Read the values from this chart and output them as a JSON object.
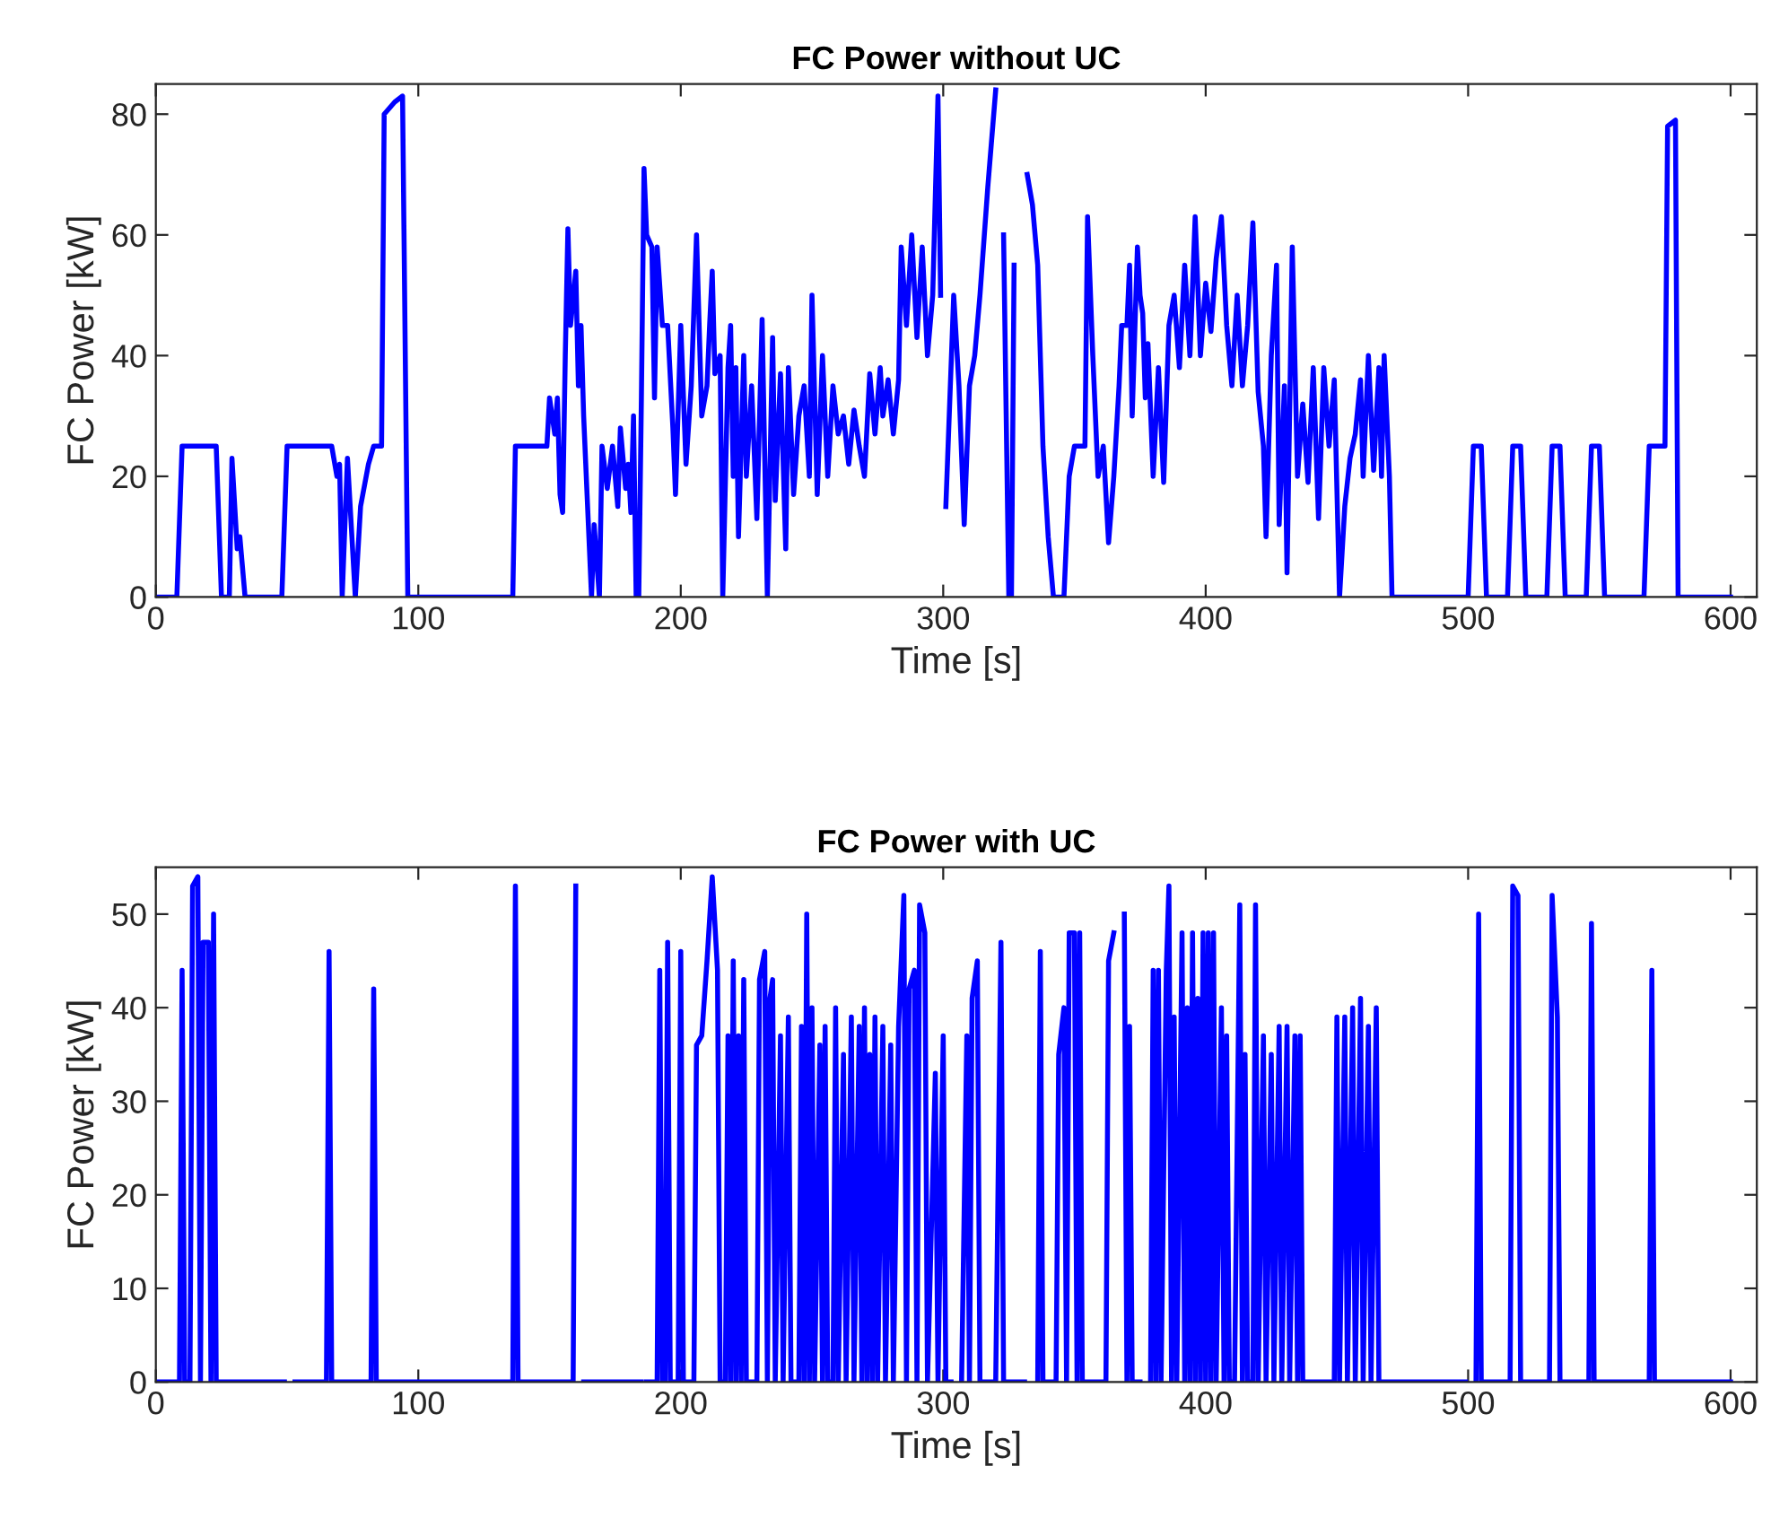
{
  "chart_data": [
    {
      "type": "line",
      "title": "FC Power without UC",
      "xlabel": "Time [s]",
      "ylabel": "FC Power [kW]",
      "xlim": [
        0,
        610
      ],
      "xticks": [
        0,
        100,
        200,
        300,
        400,
        500,
        600
      ],
      "ylim": [
        0,
        85
      ],
      "yticks": [
        0,
        20,
        40,
        60,
        80
      ],
      "grid": false,
      "legend": false,
      "marker": "none",
      "line_style": "solid",
      "series": [
        {
          "color": "#0000ff",
          "x": [
            0,
            8,
            10,
            23,
            25,
            28,
            29,
            31,
            32,
            34,
            48,
            50,
            67,
            69,
            70,
            71,
            73,
            76,
            78,
            81,
            83,
            86,
            87,
            91,
            94,
            96,
            98,
            136,
            137,
            149,
            150,
            152,
            153,
            154,
            155,
            156,
            157,
            158,
            160,
            161,
            162,
            163,
            164,
            165,
            166,
            167,
            169,
            170,
            172,
            174,
            176,
            177,
            179,
            180,
            181,
            182,
            183,
            184,
            185,
            186,
            187,
            189,
            190,
            191,
            193,
            195,
            197,
            198,
            200,
            202,
            204,
            206,
            208,
            210,
            211,
            212,
            213,
            215,
            216,
            218,
            219,
            220,
            221,
            222,
            224,
            225,
            227,
            229,
            231,
            233,
            235,
            236,
            238,
            240,
            241,
            243,
            245,
            247,
            249,
            250,
            252,
            254,
            256,
            258,
            260,
            262,
            264,
            266,
            268,
            270,
            272,
            274,
            276,
            277,
            279,
            281,
            283,
            284,
            286,
            288,
            290,
            292,
            294,
            296,
            298,
            299,
            300,
            301,
            304,
            306,
            308,
            310,
            312,
            314,
            317,
            320,
            322,
            323,
            325,
            326,
            327,
            328,
            331,
            332,
            334,
            336,
            338,
            340,
            342,
            346,
            348,
            350,
            354,
            355,
            357,
            359,
            361,
            363,
            365,
            367,
            368,
            370,
            371,
            372,
            374,
            375,
            376,
            377,
            378,
            380,
            382,
            384,
            386,
            388,
            390,
            392,
            394,
            396,
            398,
            400,
            402,
            404,
            406,
            408,
            410,
            412,
            414,
            416,
            418,
            420,
            422,
            423,
            425,
            427,
            428,
            430,
            431,
            433,
            435,
            437,
            439,
            441,
            443,
            445,
            447,
            449,
            451,
            453,
            455,
            457,
            459,
            460,
            462,
            464,
            466,
            467,
            468,
            470,
            471,
            500,
            502,
            505,
            507,
            515,
            517,
            520,
            522,
            530,
            532,
            535,
            537,
            545,
            547,
            550,
            552,
            567,
            569,
            575,
            576,
            579,
            580,
            600
          ],
          "values": [
            0,
            0,
            25,
            25,
            0,
            0,
            23,
            8,
            10,
            0,
            0,
            25,
            25,
            20,
            22,
            0,
            23,
            0,
            15,
            22,
            25,
            25,
            80,
            82,
            83,
            0,
            0,
            0,
            25,
            25,
            33,
            27,
            33,
            17,
            14,
            40,
            61,
            45,
            54,
            35,
            45,
            30,
            20,
            10,
            0,
            12,
            0,
            25,
            18,
            25,
            15,
            28,
            18,
            22,
            14,
            30,
            0,
            0,
            33,
            71,
            60,
            58,
            33,
            58,
            45,
            45,
            28,
            17,
            45,
            22,
            35,
            60,
            30,
            35,
            45,
            54,
            37,
            40,
            0,
            38,
            45,
            20,
            38,
            10,
            40,
            20,
            35,
            13,
            46,
            0,
            43,
            16,
            37,
            8,
            38,
            17,
            30,
            35,
            20,
            50,
            17,
            40,
            20,
            35,
            27,
            30,
            22,
            31,
            25,
            20,
            37,
            27,
            38,
            30,
            36,
            27,
            36,
            58,
            45,
            60,
            43,
            58,
            40,
            50,
            83,
            50,
            null,
            15,
            50,
            35,
            12,
            35,
            40,
            50,
            68,
            84,
            null,
            60,
            0,
            0,
            55,
            null,
            null,
            70,
            65,
            55,
            25,
            10,
            0,
            0,
            20,
            25,
            25,
            63,
            40,
            20,
            25,
            9,
            20,
            35,
            45,
            45,
            55,
            30,
            58,
            50,
            47,
            33,
            42,
            20,
            38,
            19,
            45,
            50,
            38,
            55,
            40,
            63,
            40,
            52,
            44,
            56,
            63,
            45,
            35,
            50,
            35,
            45,
            62,
            34,
            25,
            10,
            40,
            55,
            12,
            35,
            4,
            58,
            20,
            32,
            19,
            38,
            13,
            38,
            25,
            36,
            0,
            15,
            23,
            27,
            36,
            20,
            40,
            21,
            38,
            20,
            40,
            20,
            0,
            0,
            25,
            25,
            0,
            0,
            25,
            25,
            0,
            0,
            25,
            25,
            0,
            0,
            25,
            25,
            0,
            0,
            25,
            25,
            78,
            79,
            0,
            0
          ]
        }
      ]
    },
    {
      "type": "line",
      "title": "FC Power with UC",
      "xlabel": "Time [s]",
      "ylabel": "FC Power [kW]",
      "xlim": [
        0,
        610
      ],
      "xticks": [
        0,
        100,
        200,
        300,
        400,
        500,
        600
      ],
      "ylim": [
        0,
        55
      ],
      "yticks": [
        0,
        10,
        20,
        30,
        40,
        50
      ],
      "grid": false,
      "legend": false,
      "marker": "none",
      "line_style": "solid",
      "series": [
        {
          "color": "#0000ff",
          "x": [
            0,
            9,
            10,
            11,
            13,
            14,
            16,
            17,
            18,
            20,
            21,
            22,
            23,
            49,
            50,
            52,
            53,
            65,
            66,
            67,
            82,
            83,
            84,
            136,
            137,
            138,
            159,
            160,
            162,
            163,
            185,
            186,
            187,
            191,
            192,
            193,
            194,
            195,
            196,
            199,
            200,
            201,
            205,
            206,
            208,
            210,
            212,
            214,
            215,
            217,
            218,
            219,
            220,
            221,
            222,
            223,
            224,
            225,
            229,
            230,
            232,
            233,
            234,
            235,
            236,
            238,
            239,
            241,
            242,
            245,
            246,
            247,
            248,
            249,
            250,
            251,
            253,
            254,
            255,
            256,
            258,
            259,
            260,
            262,
            263,
            265,
            266,
            268,
            269,
            270,
            271,
            272,
            273,
            274,
            275,
            277,
            278,
            280,
            281,
            283,
            285,
            286,
            287,
            289,
            290,
            291,
            293,
            294,
            297,
            298,
            300,
            301,
            303,
            304,
            306,
            307,
            309,
            310,
            311,
            313,
            314,
            320,
            322,
            323,
            331,
            333,
            335,
            336,
            337,
            338,
            343,
            344,
            346,
            347,
            348,
            350,
            351,
            352,
            353,
            362,
            363,
            365,
            367,
            369,
            370,
            371,
            372,
            375,
            376,
            378,
            379,
            380,
            381,
            382,
            383,
            385,
            386,
            387,
            388,
            389,
            391,
            392,
            393,
            394,
            395,
            396,
            397,
            398,
            399,
            400,
            401,
            402,
            403,
            404,
            406,
            407,
            408,
            409,
            411,
            413,
            414,
            415,
            416,
            418,
            419,
            420,
            422,
            423,
            425,
            426,
            428,
            429,
            431,
            432,
            434,
            435,
            436,
            437,
            449,
            450,
            451,
            453,
            454,
            456,
            457,
            459,
            460,
            462,
            463,
            465,
            466,
            499,
            500,
            502,
            503,
            504,
            505,
            516,
            517,
            519,
            520,
            531,
            532,
            534,
            535,
            546,
            547,
            548,
            569,
            570,
            571,
            600
          ],
          "values": [
            0,
            0,
            44,
            0,
            0,
            53,
            54,
            0,
            47,
            47,
            0,
            50,
            0,
            0,
            null,
            null,
            0,
            0,
            46,
            0,
            0,
            42,
            0,
            0,
            53,
            0,
            0,
            53,
            null,
            0,
            0,
            null,
            0,
            0,
            44,
            0,
            0,
            47,
            0,
            0,
            46,
            0,
            0,
            36,
            37,
            45,
            54,
            44,
            0,
            0,
            37,
            0,
            45,
            0,
            37,
            0,
            43,
            0,
            0,
            43,
            46,
            0,
            41,
            43,
            0,
            37,
            0,
            39,
            0,
            0,
            38,
            0,
            50,
            0,
            40,
            0,
            36,
            0,
            38,
            0,
            0,
            40,
            0,
            35,
            0,
            39,
            0,
            38,
            0,
            40,
            0,
            35,
            0,
            39,
            0,
            38,
            0,
            36,
            0,
            38,
            52,
            0,
            42,
            44,
            0,
            51,
            48,
            0,
            33,
            0,
            37,
            0,
            0,
            null,
            null,
            0,
            37,
            0,
            41,
            45,
            0,
            0,
            47,
            0,
            0,
            null,
            null,
            0,
            46,
            0,
            0,
            35,
            40,
            0,
            48,
            48,
            0,
            48,
            0,
            0,
            45,
            48,
            null,
            50,
            0,
            38,
            0,
            0,
            null,
            null,
            0,
            44,
            0,
            44,
            0,
            44,
            53,
            0,
            39,
            0,
            48,
            0,
            40,
            0,
            48,
            0,
            41,
            0,
            48,
            0,
            48,
            0,
            48,
            0,
            40,
            0,
            37,
            0,
            0,
            51,
            0,
            35,
            0,
            0,
            51,
            0,
            37,
            0,
            35,
            0,
            38,
            0,
            38,
            0,
            37,
            0,
            37,
            0,
            0,
            39,
            0,
            39,
            0,
            40,
            0,
            41,
            0,
            38,
            0,
            40,
            0,
            0,
            null,
            null,
            0,
            50,
            0,
            0,
            53,
            52,
            0,
            0,
            52,
            39,
            0,
            0,
            49,
            0,
            0,
            44,
            0,
            0
          ]
        }
      ]
    }
  ]
}
